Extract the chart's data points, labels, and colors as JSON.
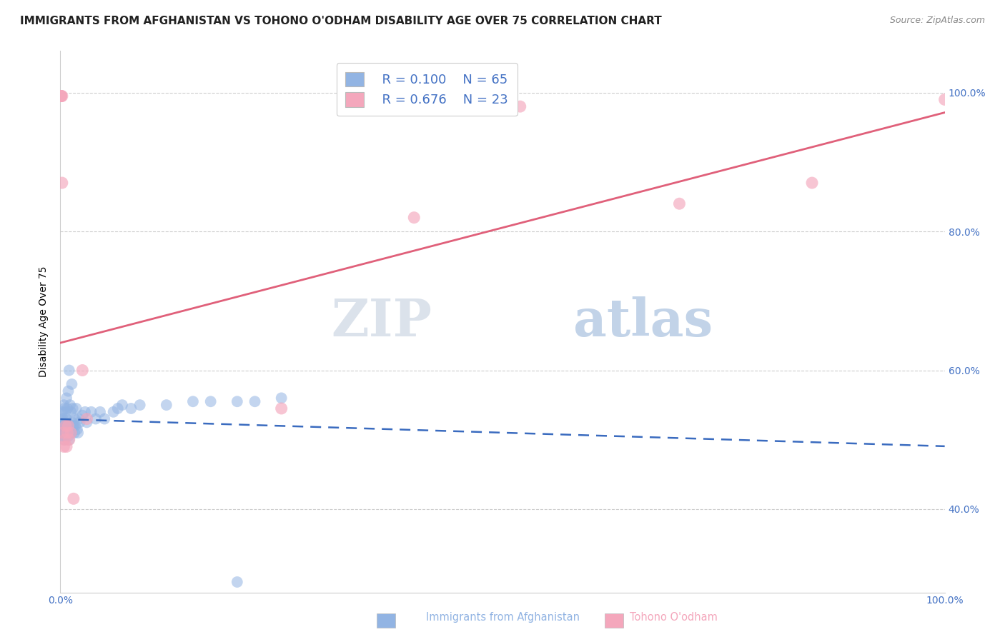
{
  "title": "IMMIGRANTS FROM AFGHANISTAN VS TOHONO O'ODHAM DISABILITY AGE OVER 75 CORRELATION CHART",
  "source": "Source: ZipAtlas.com",
  "ylabel": "Disability Age Over 75",
  "legend_r1": "R = 0.100",
  "legend_n1": "N = 65",
  "legend_r2": "R = 0.676",
  "legend_n2": "N = 23",
  "blue_color": "#92b4e3",
  "blue_line_color": "#3a6bbf",
  "pink_color": "#f4a7bc",
  "pink_line_color": "#e0607a",
  "right_tick_color": "#4472c4",
  "title_fontsize": 11,
  "source_fontsize": 9,
  "blue_scatter": {
    "x": [
      0.001,
      0.001,
      0.002,
      0.002,
      0.002,
      0.003,
      0.003,
      0.003,
      0.004,
      0.004,
      0.004,
      0.005,
      0.005,
      0.005,
      0.006,
      0.006,
      0.006,
      0.007,
      0.007,
      0.007,
      0.008,
      0.008,
      0.008,
      0.009,
      0.009,
      0.01,
      0.01,
      0.01,
      0.011,
      0.011,
      0.012,
      0.012,
      0.013,
      0.013,
      0.013,
      0.014,
      0.014,
      0.015,
      0.016,
      0.016,
      0.017,
      0.018,
      0.019,
      0.02,
      0.021,
      0.022,
      0.025,
      0.028,
      0.03,
      0.035,
      0.04,
      0.045,
      0.05,
      0.06,
      0.065,
      0.07,
      0.08,
      0.09,
      0.12,
      0.15,
      0.17,
      0.2,
      0.22,
      0.25,
      0.2
    ],
    "y": [
      0.51,
      0.52,
      0.51,
      0.53,
      0.54,
      0.505,
      0.515,
      0.53,
      0.5,
      0.52,
      0.55,
      0.505,
      0.525,
      0.545,
      0.51,
      0.52,
      0.54,
      0.505,
      0.53,
      0.56,
      0.51,
      0.525,
      0.545,
      0.505,
      0.57,
      0.5,
      0.52,
      0.6,
      0.51,
      0.55,
      0.51,
      0.54,
      0.51,
      0.525,
      0.58,
      0.52,
      0.545,
      0.52,
      0.51,
      0.53,
      0.52,
      0.545,
      0.515,
      0.51,
      0.53,
      0.525,
      0.535,
      0.54,
      0.525,
      0.54,
      0.53,
      0.54,
      0.53,
      0.54,
      0.545,
      0.55,
      0.545,
      0.55,
      0.55,
      0.555,
      0.555,
      0.555,
      0.555,
      0.56,
      0.295
    ]
  },
  "pink_scatter": {
    "x": [
      0.001,
      0.001,
      0.001,
      0.002,
      0.002,
      0.003,
      0.004,
      0.005,
      0.006,
      0.007,
      0.008,
      0.009,
      0.01,
      0.012,
      0.015,
      0.025,
      0.03,
      0.25,
      0.4,
      0.52,
      0.7,
      0.85,
      1.0
    ],
    "y": [
      0.995,
      0.995,
      0.995,
      0.995,
      0.87,
      0.51,
      0.49,
      0.5,
      0.52,
      0.49,
      0.51,
      0.52,
      0.5,
      0.51,
      0.415,
      0.6,
      0.53,
      0.545,
      0.82,
      0.98,
      0.84,
      0.87,
      0.99
    ]
  },
  "xlim": [
    0.0,
    1.0
  ],
  "ylim": [
    0.28,
    1.06
  ],
  "yticks_right": [
    0.4,
    0.6,
    0.8,
    1.0
  ],
  "ytick_labels_right": [
    "40.0%",
    "60.0%",
    "80.0%",
    "100.0%"
  ],
  "xtick_labels": [
    "0.0%",
    "100.0%"
  ],
  "xtick_vals": [
    0.0,
    1.0
  ],
  "blue_line_start_x": 0.0,
  "blue_line_end_x": 1.0,
  "pink_line_start_x": 0.0,
  "pink_line_end_x": 1.0
}
